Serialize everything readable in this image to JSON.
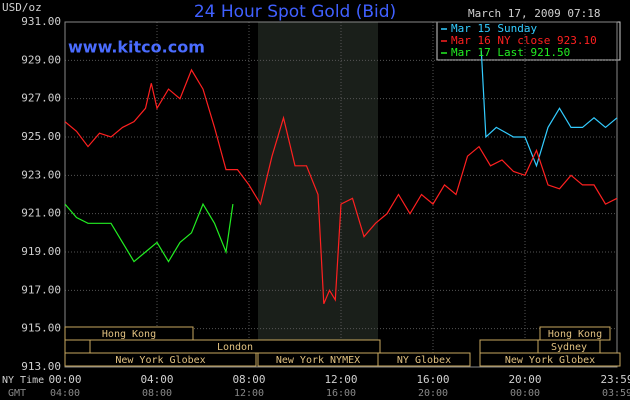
{
  "chart_data": {
    "type": "line",
    "title": "24 Hour Spot Gold (Bid)",
    "unit_label": "USD/oz",
    "timestamp": "March 17, 2009 07:18",
    "watermark": "www.kitco.com",
    "x_row_labels": [
      "NY Time",
      "GMT"
    ],
    "xlim": [
      0,
      24
    ],
    "xticks": [
      {
        "value": 0,
        "label": "00:00"
      },
      {
        "value": 4,
        "label": "04:00"
      },
      {
        "value": 8,
        "label": "08:00"
      },
      {
        "value": 12,
        "label": "12:00"
      },
      {
        "value": 16,
        "label": "16:00"
      },
      {
        "value": 20,
        "label": "20:00"
      },
      {
        "value": 24,
        "label": "23:59"
      }
    ],
    "gmt_tick_labels": [
      "04:00",
      "08:00",
      "12:00",
      "16:00",
      "20:00",
      "00:00",
      "03:59"
    ],
    "ylim": [
      913,
      931
    ],
    "yticks": [
      {
        "value": 913,
        "label": "913.00"
      },
      {
        "value": 915,
        "label": "915.00"
      },
      {
        "value": 917,
        "label": "917.00"
      },
      {
        "value": 919,
        "label": "919.00"
      },
      {
        "value": 921,
        "label": "921.00"
      },
      {
        "value": 923,
        "label": "923.00"
      },
      {
        "value": 925,
        "label": "925.00"
      },
      {
        "value": 927,
        "label": "927.00"
      },
      {
        "value": 929,
        "label": "929.00"
      },
      {
        "value": 931,
        "label": "931.00"
      }
    ],
    "grid": true,
    "sessions": [
      "Hong Kong",
      "London",
      "New York Globex",
      "New York NYMEX",
      "NY Globex",
      "Sydney",
      "Hong Kong",
      "New York Globex"
    ],
    "series": [
      {
        "name": "Mar 15 Sunday",
        "color": "#33ccff",
        "x": [
          18.1,
          18.3,
          18.75,
          19.5,
          20,
          20.5,
          21,
          21.5,
          22,
          22.5,
          23,
          23.5,
          24
        ],
        "values": [
          929.5,
          925.0,
          925.5,
          925.0,
          925.0,
          923.5,
          925.5,
          926.5,
          925.5,
          925.5,
          926.0,
          925.5,
          926.0
        ]
      },
      {
        "name": "Mar 16 NY close 923.10",
        "color": "#ff2020",
        "x": [
          0,
          0.5,
          1,
          1.5,
          2,
          2.5,
          3,
          3.5,
          3.75,
          4,
          4.5,
          5,
          5.5,
          6,
          6.5,
          7,
          7.5,
          8,
          8.5,
          9,
          9.5,
          10,
          10.5,
          11,
          11.25,
          11.5,
          11.75,
          12,
          12.5,
          13,
          13.5,
          14,
          14.5,
          15,
          15.5,
          16,
          16.5,
          17,
          17.5,
          18,
          18.5,
          19,
          19.5,
          20,
          20.5,
          21,
          21.5,
          22,
          22.5,
          23,
          23.5,
          24
        ],
        "values": [
          925.8,
          925.3,
          924.5,
          925.2,
          925.0,
          925.5,
          925.8,
          926.5,
          927.8,
          926.5,
          927.5,
          927.0,
          928.5,
          927.5,
          925.5,
          923.3,
          923.3,
          922.5,
          921.5,
          924.0,
          926.0,
          923.5,
          923.5,
          922.0,
          916.3,
          917.0,
          916.5,
          921.5,
          921.8,
          919.8,
          920.5,
          921.0,
          922.0,
          921.0,
          922.0,
          921.5,
          922.5,
          922.0,
          924.0,
          924.5,
          923.5,
          923.8,
          923.2,
          923.0,
          924.3,
          922.5,
          922.3,
          923.0,
          922.5,
          922.5,
          921.5,
          921.8
        ]
      },
      {
        "name": "Mar 17 Last 921.50",
        "color": "#22ee22",
        "x": [
          0,
          0.5,
          1,
          1.5,
          2,
          2.5,
          3,
          3.5,
          4,
          4.5,
          5,
          5.5,
          6,
          6.5,
          7,
          7.3
        ],
        "values": [
          921.5,
          920.8,
          920.5,
          920.5,
          920.5,
          919.5,
          918.5,
          919.0,
          919.5,
          918.5,
          919.5,
          920.0,
          921.5,
          920.5,
          919.0,
          921.5
        ]
      }
    ]
  }
}
